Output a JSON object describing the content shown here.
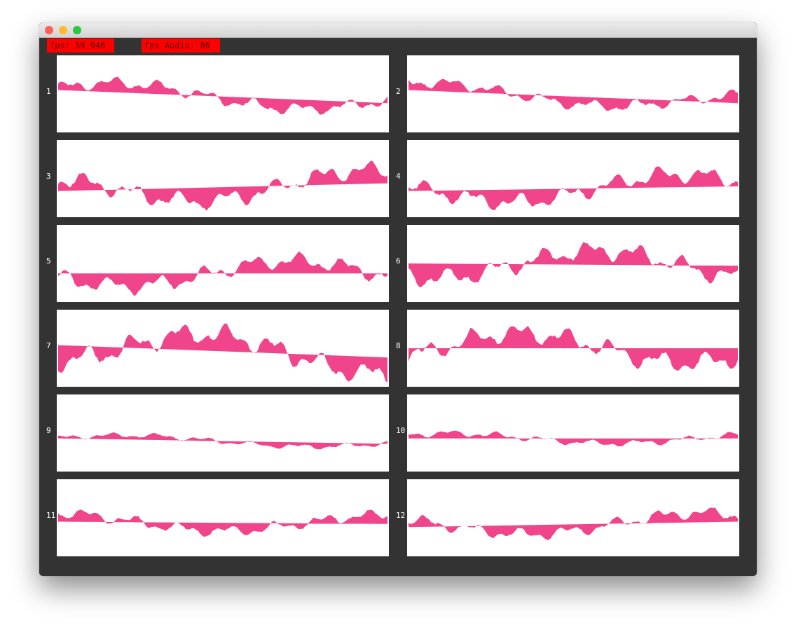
{
  "window": {
    "traffic_lights": {
      "close_color": "#fe5f57",
      "minimize_color": "#febc2e",
      "zoom_color": "#28c840"
    }
  },
  "hud": {
    "fps_label": "fps: 59.946",
    "fps_audio_label": "fps Audio: 86",
    "badge_color": "#ff0000"
  },
  "waveform_color": "#f0458a",
  "channels": [
    {
      "label": "1",
      "baseline": [
        0.45,
        0.62
      ],
      "amplitude": 0.22,
      "phase": 0.3
    },
    {
      "label": "2",
      "baseline": [
        0.45,
        0.62
      ],
      "amplitude": 0.2,
      "phase": 1.1
    },
    {
      "label": "3",
      "baseline": [
        0.66,
        0.56
      ],
      "amplitude": 0.32,
      "phase": 2.0
    },
    {
      "label": "4",
      "baseline": [
        0.66,
        0.6
      ],
      "amplitude": 0.3,
      "phase": 2.7
    },
    {
      "label": "5",
      "baseline": [
        0.63,
        0.63
      ],
      "amplitude": 0.3,
      "phase": 3.4
    },
    {
      "label": "6",
      "baseline": [
        0.5,
        0.53
      ],
      "amplitude": 0.34,
      "phase": 4.2
    },
    {
      "label": "7",
      "baseline": [
        0.46,
        0.62
      ],
      "amplitude": 0.4,
      "phase": 5.0
    },
    {
      "label": "8",
      "baseline": [
        0.5,
        0.5
      ],
      "amplitude": 0.36,
      "phase": 5.7
    },
    {
      "label": "9",
      "baseline": [
        0.57,
        0.64
      ],
      "amplitude": 0.1,
      "phase": 6.4
    },
    {
      "label": "10",
      "baseline": [
        0.57,
        0.57
      ],
      "amplitude": 0.12,
      "phase": 7.1
    },
    {
      "label": "11",
      "baseline": [
        0.55,
        0.58
      ],
      "amplitude": 0.2,
      "phase": 7.9
    },
    {
      "label": "12",
      "baseline": [
        0.62,
        0.55
      ],
      "amplitude": 0.22,
      "phase": 8.6
    }
  ]
}
